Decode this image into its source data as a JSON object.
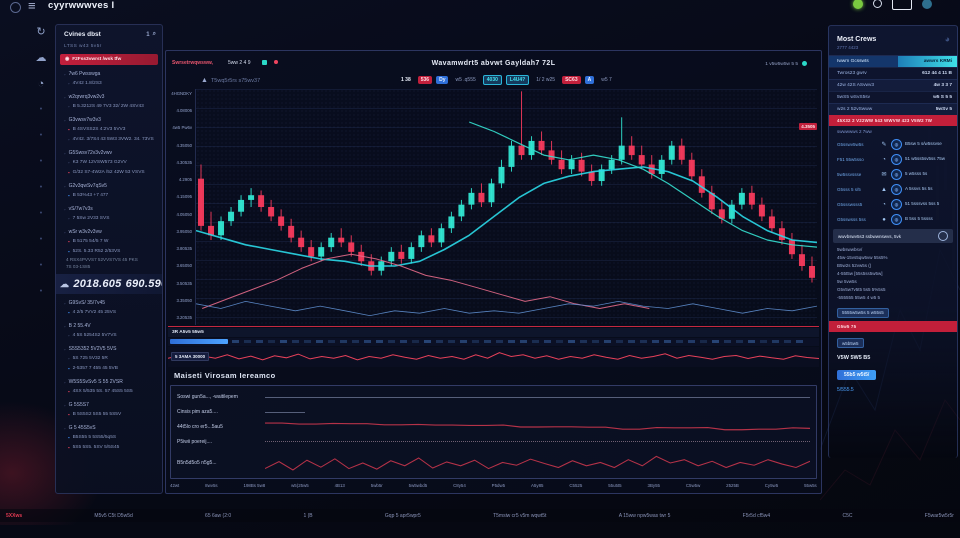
{
  "app": {
    "title": "cyyrwwwves I"
  },
  "colors": {
    "up": "#31e6d2",
    "down": "#f53a5c",
    "cyan": "#2bd9e8",
    "blue": "#3f8ef5",
    "alert_red": "#c21f3a",
    "pink": "#e56a8a",
    "baseline": "#5f8fd0"
  },
  "left_rail": {
    "icons": [
      {
        "name": "sync-icon",
        "glyph": "↻"
      },
      {
        "name": "cloud-icon",
        "glyph": "☁"
      },
      {
        "name": "user-icon",
        "glyph": "◔"
      },
      {
        "name": "dot-1-icon",
        "glyph": "•",
        "dim": true
      },
      {
        "name": "dot-2-icon",
        "glyph": "•",
        "dim": true
      },
      {
        "name": "dot-3-icon",
        "glyph": "•",
        "dim": true
      },
      {
        "name": "dot-4-icon",
        "glyph": "•",
        "dim": true
      },
      {
        "name": "dot-5-icon",
        "glyph": "•",
        "dim": true
      },
      {
        "name": "dot-6-icon",
        "glyph": "•",
        "dim": true
      },
      {
        "name": "dot-7-icon",
        "glyph": "•",
        "dim": true
      },
      {
        "name": "dot-8-icon",
        "glyph": "•",
        "dim": true
      }
    ]
  },
  "left_sidebar": {
    "header_title": "Cvines dbst",
    "header_badge": "1",
    "items": [
      {
        "t": "meta",
        "text": "LTSS    w43 5v5r"
      },
      {
        "t": "alert",
        "text": "F2Fss3vwrst /wsk tfw"
      },
      {
        "t": "title",
        "text": "7w6 Pwsswga"
      },
      {
        "t": "sub",
        "ic": "dot",
        "text": "4V42    1.8/2S3"
      },
      {
        "t": "title",
        "text": "w2qrwrq3vw2v3"
      },
      {
        "t": "sub",
        "ic": "dot",
        "text": "B 5.3212S   49 7V3 32/ 2W 4SV43"
      },
      {
        "t": "title",
        "text": "G3vwsv7w3v3"
      },
      {
        "t": "sub",
        "ic": "red",
        "text": "B 4SVSS2S    4:2V3 5VV3"
      },
      {
        "t": "sub",
        "ic": "dot",
        "text": "4V42. 3/7S4 43 5W3 3VW2. 34. 73VS"
      },
      {
        "t": "title",
        "text": "G5Swsv72v3v2vwv"
      },
      {
        "t": "sub",
        "ic": "dot",
        "text": "K3 7W 12VSW573   G2VV"
      },
      {
        "t": "sub",
        "ic": "red",
        "text": "G/32 S7-4W2A /52 42W  53 VSVS"
      },
      {
        "t": "title",
        "text": "G2v3qwSv7qSv5"
      },
      {
        "t": "sub",
        "ic": "blue",
        "text": "B 53%43    +7 477"
      },
      {
        "t": "title",
        "text": "vS/7w7v3s"
      },
      {
        "t": "sub",
        "ic": "dot",
        "text": "7 5Sw 2V33 SVS"
      },
      {
        "t": "title",
        "text": "wSr w3v2v3vw"
      },
      {
        "t": "sub",
        "ic": "red",
        "text": "B 5175    54/5 7 W"
      },
      {
        "t": "sub",
        "ic": "blue",
        "text": "52S. 5.33 R52 2/53VS"
      },
      {
        "t": "note",
        "text": "4 RSX4PVVS7 52VVS7VS 45 PKS"
      },
      {
        "t": "note",
        "text": "7S    03-1S85"
      },
      {
        "t": "big",
        "icon": "cloud",
        "v1": "2018.605",
        "v2": "690.596"
      },
      {
        "t": "title",
        "text": "G9SvS/ 35/7v45"
      },
      {
        "t": "sub",
        "ic": "blue",
        "text": "4 2/5 7VV2 45 25VS"
      },
      {
        "t": "title",
        "text": "B 2 55.4V"
      },
      {
        "t": "sub",
        "ic": "dot",
        "text": "4 5S 5254S2 5V7VS"
      },
      {
        "t": "title",
        "text": "S5S5352 5V2V5 5VS"
      },
      {
        "t": "sub",
        "ic": "dot",
        "text": "5S 725 5V32 5R"
      },
      {
        "t": "sub",
        "ic": "blue",
        "text": "2-5357 7 455 45 5VB"
      },
      {
        "t": "title",
        "text": "W5S5SvSv5 S   55 2VSR"
      },
      {
        "t": "sub",
        "ic": "red",
        "text": "4SX 5/535 5S. 57 45S5  5S5"
      },
      {
        "t": "title",
        "text": "G 5S5S7"
      },
      {
        "t": "sub",
        "ic": "red",
        "text": "B 5S5S2 5S5 55 5S5V"
      },
      {
        "t": "title",
        "text": "G 5 45S5vS"
      },
      {
        "t": "sub",
        "ic": "blue",
        "text": "B5S55 5 5S55/5q5S"
      },
      {
        "t": "sub",
        "ic": "red",
        "text": "5S5 5S5. 5SV 5/5S45"
      }
    ]
  },
  "main": {
    "meta_left_red": "Swrsetrwqwsww,",
    "meta_left_info": "5ww 2 4 9",
    "title": "Wavamwdrt5 abvwt  Gayldah7 72L",
    "meta_right": "1 v5w5w5w 5 5",
    "watermark": "T5wq5r5rs s75wv37",
    "badges": [
      {
        "t": "1 38",
        "s": "plain"
      },
      {
        "t": "536",
        "s": "red"
      },
      {
        "t": "Dy",
        "s": "blue"
      },
      {
        "t": "w5 .q555",
        "s": "dim"
      },
      {
        "t": "4030",
        "s": "cyan"
      },
      {
        "t": "L4U4?",
        "s": "cyan"
      },
      {
        "t": "1/ 2 w25",
        "s": "dim"
      },
      {
        "t": "SC63",
        "s": "red"
      },
      {
        "t": "A",
        "s": "blue"
      },
      {
        "t": "w5 7",
        "s": "dim"
      }
    ],
    "vol_left_label": "3R A5v5 55w5",
    "rsi_label": "5 3AMA 30000",
    "section_title": "Maiseti Virosam Iereamco",
    "lower_rows": [
      {
        "label": "Soswi gun5a..., -waitilepem",
        "line": "plain"
      },
      {
        "label": "Cinsis pim aza5....",
        "line": "short"
      },
      {
        "label": "44t5lo cro er5...5au5",
        "line": "step"
      },
      {
        "label": "P5iwii poereij....",
        "line": "dotted"
      },
      {
        "label": "B5n5d5o5 n5g5...",
        "line": "zig"
      }
    ],
    "price_tag": "4.3505"
  },
  "chart_data": {
    "type": "candlestick",
    "title": "Wavamwdrt5 abvwt Gayldah7 72L",
    "value_scale": [
      0,
      100
    ],
    "grid": true,
    "candles": [
      [
        62,
        68,
        40,
        42
      ],
      [
        42,
        48,
        36,
        38
      ],
      [
        38,
        46,
        36,
        44
      ],
      [
        44,
        50,
        42,
        48
      ],
      [
        48,
        55,
        46,
        53
      ],
      [
        53,
        58,
        50,
        55
      ],
      [
        55,
        57,
        48,
        50
      ],
      [
        50,
        53,
        44,
        46
      ],
      [
        46,
        49,
        40,
        42
      ],
      [
        42,
        45,
        35,
        37
      ],
      [
        37,
        40,
        31,
        33
      ],
      [
        33,
        36,
        27,
        29
      ],
      [
        29,
        35,
        27,
        33
      ],
      [
        33,
        39,
        31,
        37
      ],
      [
        37,
        41,
        33,
        35
      ],
      [
        35,
        38,
        29,
        31
      ],
      [
        31,
        34,
        25,
        27
      ],
      [
        27,
        30,
        21,
        23
      ],
      [
        23,
        29,
        21,
        27
      ],
      [
        27,
        33,
        25,
        31
      ],
      [
        31,
        34,
        26,
        28
      ],
      [
        28,
        35,
        26,
        33
      ],
      [
        33,
        40,
        31,
        38
      ],
      [
        38,
        41,
        33,
        35
      ],
      [
        35,
        43,
        33,
        41
      ],
      [
        41,
        48,
        39,
        46
      ],
      [
        46,
        53,
        44,
        51
      ],
      [
        51,
        58,
        49,
        56
      ],
      [
        56,
        60,
        50,
        52
      ],
      [
        52,
        62,
        50,
        60
      ],
      [
        60,
        70,
        58,
        67
      ],
      [
        67,
        78,
        65,
        76
      ],
      [
        76,
        99,
        70,
        72
      ],
      [
        72,
        80,
        70,
        78
      ],
      [
        78,
        82,
        72,
        74
      ],
      [
        74,
        78,
        68,
        70
      ],
      [
        70,
        74,
        64,
        66
      ],
      [
        66,
        72,
        64,
        70
      ],
      [
        70,
        73,
        63,
        65
      ],
      [
        65,
        68,
        59,
        61
      ],
      [
        61,
        68,
        59,
        66
      ],
      [
        66,
        72,
        64,
        70
      ],
      [
        70,
        88,
        68,
        76
      ],
      [
        76,
        80,
        70,
        72
      ],
      [
        72,
        76,
        66,
        68
      ],
      [
        68,
        72,
        62,
        64
      ],
      [
        64,
        72,
        62,
        70
      ],
      [
        70,
        78,
        68,
        76
      ],
      [
        76,
        79,
        68,
        70
      ],
      [
        70,
        73,
        61,
        63
      ],
      [
        63,
        66,
        54,
        56
      ],
      [
        56,
        59,
        47,
        49
      ],
      [
        49,
        53,
        43,
        45
      ],
      [
        45,
        53,
        43,
        51
      ],
      [
        51,
        58,
        49,
        56
      ],
      [
        56,
        59,
        49,
        51
      ],
      [
        51,
        54,
        44,
        46
      ],
      [
        46,
        49,
        39,
        41
      ],
      [
        41,
        44,
        34,
        36
      ],
      [
        36,
        39,
        28,
        30
      ],
      [
        30,
        34,
        23,
        25
      ],
      [
        25,
        29,
        18,
        20
      ]
    ],
    "lines": {
      "ma_fast": {
        "color": "#2bd9e8",
        "width": 1.6,
        "points": [
          [
            0,
            40
          ],
          [
            4,
            37
          ],
          [
            8,
            34
          ],
          [
            12,
            32
          ],
          [
            16,
            30
          ],
          [
            20,
            28
          ],
          [
            24,
            27
          ],
          [
            28,
            25
          ],
          [
            32,
            25
          ],
          [
            36,
            27
          ],
          [
            40,
            32
          ],
          [
            44,
            38
          ],
          [
            48,
            46
          ],
          [
            52,
            54
          ],
          [
            56,
            60
          ],
          [
            60,
            63
          ],
          [
            64,
            65
          ],
          [
            68,
            66
          ],
          [
            72,
            67
          ],
          [
            76,
            65
          ],
          [
            80,
            61
          ],
          [
            84,
            54
          ],
          [
            88,
            46
          ],
          [
            92,
            40
          ],
          [
            96,
            36
          ],
          [
            100,
            35
          ]
        ]
      },
      "ma_slow": {
        "color": "#35e0d0",
        "width": 1.2,
        "points": [
          [
            44,
            86
          ],
          [
            48,
            82
          ],
          [
            52,
            77
          ],
          [
            56,
            72
          ],
          [
            60,
            70
          ],
          [
            64,
            72
          ],
          [
            68,
            70
          ],
          [
            72,
            66
          ],
          [
            76,
            60
          ],
          [
            80,
            53
          ],
          [
            84,
            46
          ],
          [
            88,
            40
          ],
          [
            92,
            36
          ],
          [
            96,
            34
          ],
          [
            100,
            33
          ]
        ]
      },
      "pink": {
        "color": "#e56a8a",
        "width": 1,
        "points": [
          [
            1,
            7
          ],
          [
            5,
            11
          ],
          [
            9,
            15
          ],
          [
            13,
            19
          ],
          [
            17,
            24
          ],
          [
            21,
            28
          ],
          [
            25,
            30
          ],
          [
            29,
            28
          ],
          [
            33,
            25
          ],
          [
            37,
            21
          ],
          [
            41,
            19
          ],
          [
            45,
            16
          ],
          [
            49,
            13
          ],
          [
            53,
            10
          ],
          [
            57,
            12
          ],
          [
            61,
            9
          ],
          [
            65,
            7
          ],
          [
            69,
            9
          ],
          [
            73,
            7
          ]
        ]
      },
      "baseline": {
        "color": "#5f8fd0",
        "width": 0.8,
        "points": [
          [
            0,
            9
          ],
          [
            4,
            7
          ],
          [
            8,
            10
          ],
          [
            12,
            8
          ],
          [
            16,
            6
          ],
          [
            20,
            8
          ],
          [
            24,
            6
          ],
          [
            28,
            4
          ],
          [
            32,
            6
          ],
          [
            36,
            5
          ],
          [
            40,
            7
          ],
          [
            44,
            5
          ],
          [
            48,
            6
          ],
          [
            52,
            5
          ],
          [
            56,
            7
          ],
          [
            60,
            9
          ],
          [
            64,
            8
          ],
          [
            68,
            10
          ],
          [
            72,
            8
          ],
          [
            76,
            7
          ],
          [
            80,
            9
          ],
          [
            84,
            7
          ],
          [
            88,
            5
          ],
          [
            92,
            7
          ],
          [
            96,
            6
          ],
          [
            100,
            8
          ]
        ]
      }
    },
    "price_tag_value": 84,
    "rsi_strip": [
      45,
      62,
      38,
      58,
      46,
      66,
      42,
      58,
      36,
      60,
      48,
      70,
      42,
      56,
      46,
      62,
      36,
      56,
      46,
      66,
      52,
      40,
      62,
      46,
      56,
      40,
      66,
      46,
      78,
      56,
      66,
      46,
      60,
      40,
      56,
      46,
      66,
      52,
      40,
      62,
      46,
      56,
      72,
      46,
      62,
      52,
      40,
      56,
      62,
      44,
      58,
      48,
      40,
      60,
      50,
      44
    ],
    "volume_pattern": [
      0.5,
      0.3,
      0.45,
      0.25,
      0.55,
      0.35,
      0.3,
      0.5,
      0.28,
      0.42,
      0.33,
      0.48
    ],
    "sub_panel": {
      "step": [
        78,
        78,
        72,
        72,
        76,
        74,
        74,
        66,
        66,
        68,
        64,
        64,
        62,
        62,
        64,
        50,
        50,
        52,
        52,
        48,
        48,
        34,
        34,
        46,
        44,
        44,
        46,
        30,
        30,
        34,
        34,
        44,
        40
      ],
      "zig": [
        30,
        55,
        25,
        60,
        35,
        65,
        30,
        50,
        28,
        58,
        40,
        68,
        32,
        54,
        40,
        60,
        30,
        52,
        42,
        64,
        48,
        34,
        58,
        40,
        52,
        34,
        62,
        40,
        74,
        50,
        62,
        40,
        56,
        34,
        52,
        42,
        62,
        46,
        34,
        56
      ]
    },
    "y_labels": [
      "4HGNDKY",
      "4.08006",
      "4w5 Pw6v",
      "4.35050",
      "4.30535",
      "4.2905",
      "4.15095",
      "4.05050",
      "3.95050",
      "3.80535",
      "3.65050",
      "3.50535",
      "3.35050",
      "3.20535"
    ],
    "x_labels": [
      "42wt",
      "8wv5s",
      "198Bs 5w8",
      "w5(25w5",
      "4B13",
      "5wb5r",
      "5w5wbd5",
      "C8y54",
      "P5dw5",
      "A5y85",
      "C5525",
      "55u5t5",
      "3By55",
      "C5w5w",
      "2525B",
      "Cy5w5",
      "55w5s"
    ]
  },
  "right_sidebar": {
    "title": "Most Crews",
    "subtitle": "2777 4423",
    "stats": [
      {
        "label": "Iwwm Gcsswts",
        "value": "awwrs KRMi",
        "hl": true
      },
      {
        "label": "Twros23 gwrv",
        "value": "612 44 4 11 B"
      },
      {
        "label": "42w 42S ASvwv3",
        "value": "4w 3 3 7"
      },
      {
        "label": "5wS5 wSvS5sv",
        "value": "w5 S 5 5"
      },
      {
        "label": "w2s 2 52vSwww",
        "value": "5wSv 5"
      }
    ],
    "alert1": "45X32 2 V22WW 543 WWVW 423 V5W2 7W",
    "sublabel": "swwwwws 2 7ww",
    "icon_rows": [
      {
        "left": "G5sswv5w5s",
        "glyph": "✎",
        "right": "B5sw 5 s/w5ssvse"
      },
      {
        "left": "F51 55w5sso",
        "glyph": "◔",
        "right": "51 w5ss5sv5ss 75w"
      },
      {
        "left": "5w5ssvssse",
        "glyph": "✉",
        "right": "5 w5sss 5s"
      },
      {
        "left": "G5sss 5 s/5",
        "glyph": "▲",
        "right": "A 5ssvs 5s 5s"
      },
      {
        "left": "G5ssswsss5",
        "glyph": "◔",
        "right": "51 5sssvss 5ss 5"
      },
      {
        "left": "G5sswsss 5ss",
        "glyph": "●",
        "right": "B 5ss 5 5ssss"
      }
    ],
    "hl_row": "wwvbswv5s3 ssbwwnswvs, 5vk",
    "lines": [
      "5wbswwbsv/",
      "45w-15vs5qw5vw 55s5%",
      "B5w2s 52vw5s  ()",
      "4-55t5w  [55s5ss5w5w]",
      "5w 5vw5s",
      "G5v5w7v5t5 5s5 5%5s5",
      "-555555 55w5   4 w5 5"
    ],
    "chip": "5555w5w5s 5 w55s5",
    "alert2": "G5w5 75",
    "chip2": "w5b5w5",
    "footer_bold": "V5W 5W5 B5",
    "button1": "55b5 w5t5/",
    "link1": "5/555.5"
  },
  "bottom_bar": {
    "items": [
      {
        "text": "5XXws",
        "style": "red"
      },
      {
        "text": "M5v5   C5t D5w5d"
      },
      {
        "text": "65 6aw  (2:0"
      },
      {
        "text": "1 (B"
      },
      {
        "text": "Gqp 5 apr5wpr5"
      },
      {
        "text": "T5msiw cr5 v5m wqwt5t"
      },
      {
        "text": "A 15ww npw5was twr 5"
      },
      {
        "text": "F5r5d cf5w4"
      },
      {
        "text": "C5C"
      },
      {
        "text": "F5war5w5r5r"
      }
    ]
  }
}
